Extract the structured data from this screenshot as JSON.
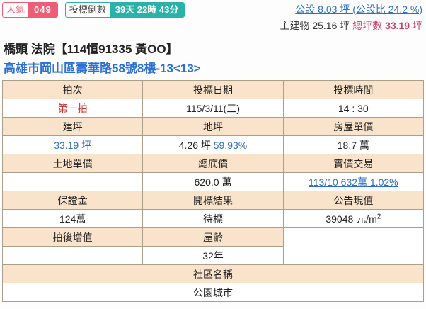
{
  "badges": {
    "popularity_label": "人氣",
    "popularity_value": "049",
    "countdown_label": "投標倒數",
    "countdown_value": "39天 22時 43分"
  },
  "summary": {
    "public_area_link": "公設 8.03 坪 (公設比 24.2 %)",
    "main_building": "主建物 25.16 坪",
    "total_ping_label": "總坪數",
    "total_ping_value": "33.19",
    "total_ping_unit": "坪"
  },
  "title": {
    "court_case": "橋頭 法院【114恒91335 黃OO】",
    "address": "高雄市岡山區壽華路58號8樓-13<13>"
  },
  "table": {
    "row1": {
      "h1": "拍次",
      "h2": "投標日期",
      "h3": "投標時間",
      "v1": "第一拍",
      "v2": "115/3/11(三)",
      "v3": "14 : 30"
    },
    "row2": {
      "h1": "建坪",
      "h2": "地坪",
      "h3": "房屋單價",
      "v1": "33.19 坪",
      "v2_text": "4.26 坪",
      "v2_link": "59.93%",
      "v3": "18.7 萬"
    },
    "row3": {
      "h1": "土地單價",
      "h2": "總底價",
      "h3": "實價交易",
      "v1": "",
      "v2": "620.0 萬",
      "v3": "113/10 632萬 1.02%"
    },
    "row4": {
      "h1": "保證金",
      "h2": "開標結果",
      "h3": "公告現值",
      "v1": "124萬",
      "v2": "待標",
      "v3_num": "39048 元/m",
      "v3_sup": "2"
    },
    "row5": {
      "h1": "拍後增值",
      "h2": "屋齡",
      "v1": "",
      "v2": "32年"
    },
    "community": {
      "header": "社區名稱",
      "value": "公園城市"
    }
  },
  "colors": {
    "badge_pink": "#ef5c75",
    "badge_teal": "#28b2a8",
    "table_header_bg": "#f9e3cb",
    "link_blue": "#2d6fc2",
    "address_blue": "#2b6fd4",
    "alert_red": "#c9302c",
    "total_crimson": "#d23c64"
  }
}
